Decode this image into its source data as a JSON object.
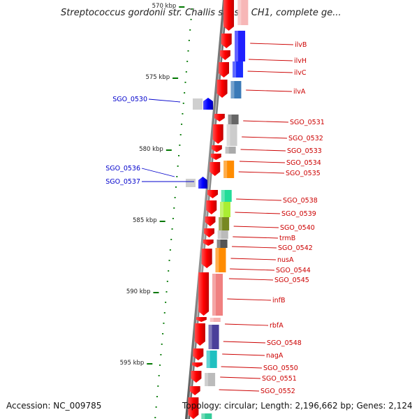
{
  "title": "Streptococcus gordonii str. Challis substr. CH1, complete ge...",
  "footer": {
    "accession": "Accession: NC_009785",
    "topology": "Topology: circular; Length: 2,196,662 bp; Genes: 2,124"
  },
  "colors": {
    "backbone": "#8a8a8a",
    "forward_gene": "#ff0000",
    "reverse_gene": "#0000ff",
    "tick": "#007700",
    "label_forward": "#cc0000",
    "label_reverse": "#0000cc"
  },
  "ticks": [
    "570 kbp",
    "575 kbp",
    "580 kbp",
    "585 kbp",
    "590 kbp",
    "595 kbp"
  ],
  "labels_forward": [
    "ilvB",
    "ilvH",
    "ilvC",
    "ilvA",
    "SGO_0531",
    "SGO_0532",
    "SGO_0533",
    "SGO_0534",
    "SGO_0535",
    "SGO_0538",
    "SGO_0539",
    "SGO_0540",
    "trmB",
    "SGO_0542",
    "nusA",
    "SGO_0544",
    "SGO_0545",
    "infB",
    "rbfA",
    "SGO_0548",
    "nagA",
    "SGO_0550",
    "SGO_0551",
    "SGO_0552"
  ],
  "labels_reverse": [
    "SGO_0530",
    "SGO_0536",
    "SGO_0537"
  ]
}
